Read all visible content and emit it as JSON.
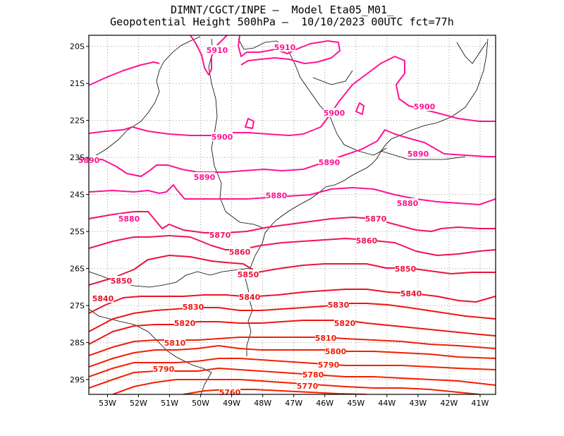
{
  "title": {
    "line1": "DIMNT/CGCT/INPE —  Model Eta05_M01_",
    "line2": "Geopotential Height 500hPa —  10/10/2023 00UTC fct=77h"
  },
  "map": {
    "lon_range": [
      -53.6,
      -40.5
    ],
    "lat_range": [
      -29.4,
      -19.7
    ],
    "lon_ticks": [
      "53W",
      "52W",
      "51W",
      "50W",
      "49W",
      "48W",
      "47W",
      "46W",
      "45W",
      "44W",
      "43W",
      "42W",
      "41W"
    ],
    "lat_ticks": [
      "20S",
      "21S",
      "22S",
      "23S",
      "24S",
      "25S",
      "26S",
      "27S",
      "28S",
      "29S"
    ],
    "grid": "dotted",
    "colors": {
      "high": "#ff1493",
      "mid": "#e8143c",
      "low": "#ff2200"
    }
  },
  "contours": [
    {
      "level": "5910",
      "color": "#ff1493"
    },
    {
      "level": "5900",
      "color": "#ff1493"
    },
    {
      "level": "5890",
      "color": "#ff1493"
    },
    {
      "level": "5880",
      "color": "#ff1493"
    },
    {
      "level": "5870",
      "color": "#f01464"
    },
    {
      "level": "5860",
      "color": "#f01450"
    },
    {
      "level": "5850",
      "color": "#e8143c"
    },
    {
      "level": "5840",
      "color": "#e81428"
    },
    {
      "level": "5830",
      "color": "#f01414"
    },
    {
      "level": "5820",
      "color": "#f01414"
    },
    {
      "level": "5810",
      "color": "#f01e0a"
    },
    {
      "level": "5800",
      "color": "#f51e00"
    },
    {
      "level": "5790",
      "color": "#f51e00"
    },
    {
      "level": "5780",
      "color": "#f51e00"
    },
    {
      "level": "5770",
      "color": "#f51e00"
    },
    {
      "level": "5760",
      "color": "#f51e00"
    }
  ]
}
